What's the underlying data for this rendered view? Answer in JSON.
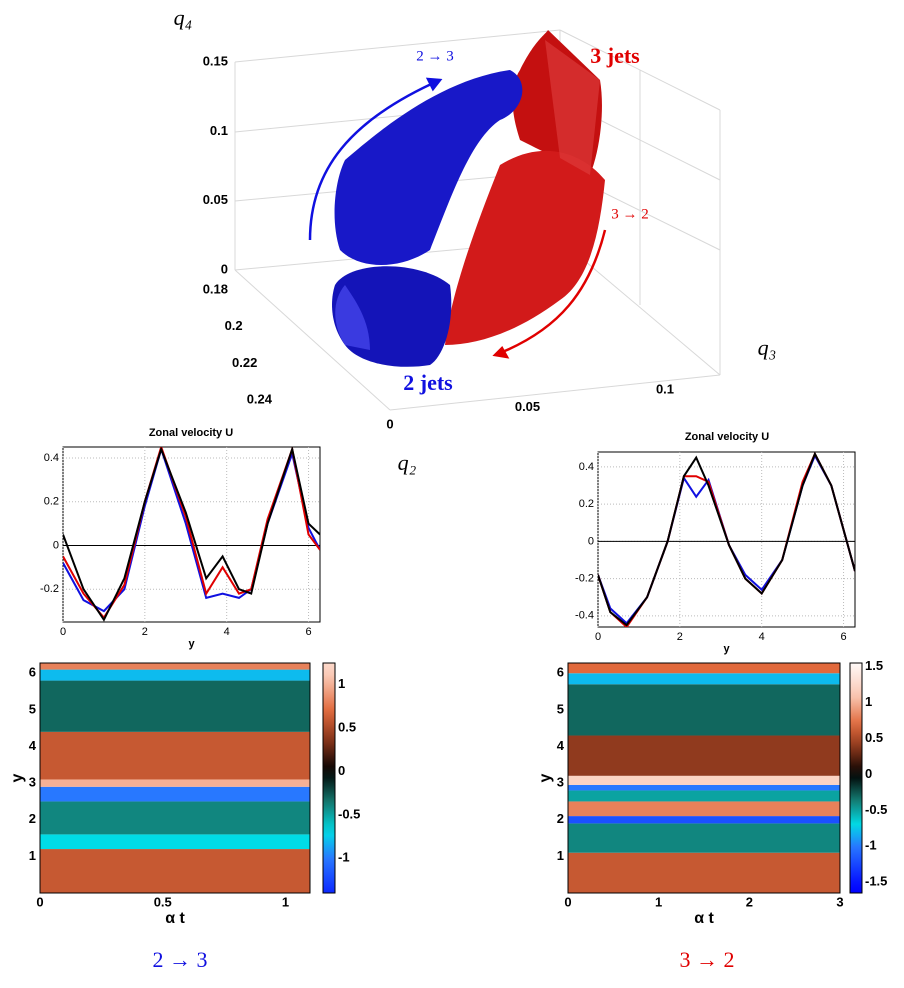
{
  "chart_data": [
    {
      "type": "surface3d",
      "xlabel": "q₂",
      "ylabel": "q₃",
      "zlabel": "q₄",
      "xlim": [
        0.18,
        0.24
      ],
      "xticks": [
        0.18,
        0.2,
        0.22,
        0.24
      ],
      "ylim": [
        0,
        0.1
      ],
      "yticks": [
        0,
        0.05,
        0.1
      ],
      "zlim": [
        0,
        0.15
      ],
      "zticks": [
        0,
        0.05,
        0.1,
        0.15
      ],
      "annotations": [
        {
          "text": "3 jets",
          "color": "#e00000"
        },
        {
          "text": "2 jets",
          "color": "#1010e0"
        },
        {
          "text": "2 → 3",
          "color": "#1010e0"
        },
        {
          "text": "3 → 2",
          "color": "#e00000"
        }
      ]
    },
    {
      "type": "line",
      "title": "Zonal velocity U",
      "xlabel": "y",
      "xlim": [
        0,
        6.28
      ],
      "xticks": [
        0,
        2,
        4,
        6
      ],
      "ylim": [
        -0.35,
        0.45
      ],
      "yticks": [
        -0.2,
        0,
        0.2,
        0.4
      ],
      "grid": true,
      "x": [
        0,
        0.5,
        1,
        1.5,
        2,
        2.4,
        3,
        3.5,
        3.9,
        4.3,
        4.6,
        5,
        5.6,
        6,
        6.28
      ],
      "series": [
        {
          "color": "#1010e0",
          "values": [
            -0.08,
            -0.25,
            -0.3,
            -0.2,
            0.18,
            0.44,
            0.1,
            -0.24,
            -0.22,
            -0.24,
            -0.2,
            0.1,
            0.42,
            0.08,
            -0.02
          ]
        },
        {
          "color": "#e00000",
          "values": [
            -0.05,
            -0.22,
            -0.33,
            -0.18,
            0.2,
            0.45,
            0.13,
            -0.22,
            -0.1,
            -0.22,
            -0.2,
            0.12,
            0.44,
            0.05,
            -0.02
          ]
        },
        {
          "color": "#000000",
          "values": [
            0.05,
            -0.2,
            -0.34,
            -0.15,
            0.2,
            0.44,
            0.15,
            -0.15,
            -0.05,
            -0.2,
            -0.22,
            0.1,
            0.44,
            0.1,
            0.05
          ]
        }
      ]
    },
    {
      "type": "line",
      "title": "Zonal velocity U",
      "xlabel": "y",
      "xlim": [
        0,
        6.28
      ],
      "xticks": [
        0,
        2,
        4,
        6
      ],
      "ylim": [
        -0.46,
        0.48
      ],
      "yticks": [
        -0.4,
        -0.2,
        0,
        0.2,
        0.4
      ],
      "grid": true,
      "x": [
        0,
        0.3,
        0.7,
        1.2,
        1.7,
        2.1,
        2.4,
        2.7,
        3.2,
        3.6,
        4,
        4.5,
        5,
        5.3,
        5.7,
        6.28
      ],
      "series": [
        {
          "color": "#1010e0",
          "values": [
            -0.18,
            -0.36,
            -0.44,
            -0.3,
            0,
            0.34,
            0.24,
            0.33,
            -0.02,
            -0.18,
            -0.26,
            -0.1,
            0.3,
            0.46,
            0.3,
            -0.16
          ]
        },
        {
          "color": "#e00000",
          "values": [
            -0.18,
            -0.38,
            -0.46,
            -0.3,
            0,
            0.35,
            0.35,
            0.32,
            -0.02,
            -0.2,
            -0.28,
            -0.1,
            0.32,
            0.47,
            0.3,
            -0.16
          ]
        },
        {
          "color": "#000000",
          "values": [
            -0.18,
            -0.38,
            -0.45,
            -0.3,
            0,
            0.35,
            0.45,
            0.3,
            -0.02,
            -0.2,
            -0.28,
            -0.1,
            0.3,
            0.47,
            0.3,
            -0.16
          ]
        }
      ]
    },
    {
      "type": "heatmap",
      "xlabel": "α t",
      "ylabel": "y",
      "caption": "2 → 3",
      "caption_color": "#1010e0",
      "xlim": [
        0,
        1.1
      ],
      "xticks": [
        0,
        0.5,
        1
      ],
      "ylim": [
        0,
        6.28
      ],
      "yticks": [
        1,
        2,
        3,
        4,
        5,
        6
      ],
      "clim": [
        -1.4,
        1.25
      ],
      "cticks": [
        1,
        0.5,
        0,
        -0.5,
        -1
      ],
      "y_edges": [
        0,
        1.2,
        1.6,
        2.5,
        2.9,
        3.1,
        4.4,
        5.8,
        6.1,
        6.28
      ],
      "values": [
        0.6,
        -0.7,
        -0.4,
        -1.0,
        1.0,
        0.6,
        -0.3,
        -0.8,
        0.8
      ]
    },
    {
      "type": "heatmap",
      "xlabel": "α t",
      "ylabel": "y",
      "caption": "3 → 2",
      "caption_color": "#e00000",
      "xlim": [
        0,
        3
      ],
      "xticks": [
        0,
        1,
        2,
        3
      ],
      "ylim": [
        0,
        6.28
      ],
      "yticks": [
        1,
        2,
        3,
        4,
        5,
        6
      ],
      "clim": [
        -1.65,
        1.55
      ],
      "cticks": [
        1.5,
        1,
        0.5,
        0,
        -0.5,
        -1,
        -1.5
      ],
      "y_edges": [
        0,
        1.1,
        1.9,
        2.1,
        2.5,
        2.8,
        2.95,
        3.2,
        4.3,
        5.7,
        6.0,
        6.28
      ],
      "values": [
        0.6,
        -0.4,
        -1.2,
        0.8,
        -0.5,
        -1.0,
        1.2,
        0.4,
        -0.3,
        -0.8,
        0.7
      ]
    }
  ]
}
